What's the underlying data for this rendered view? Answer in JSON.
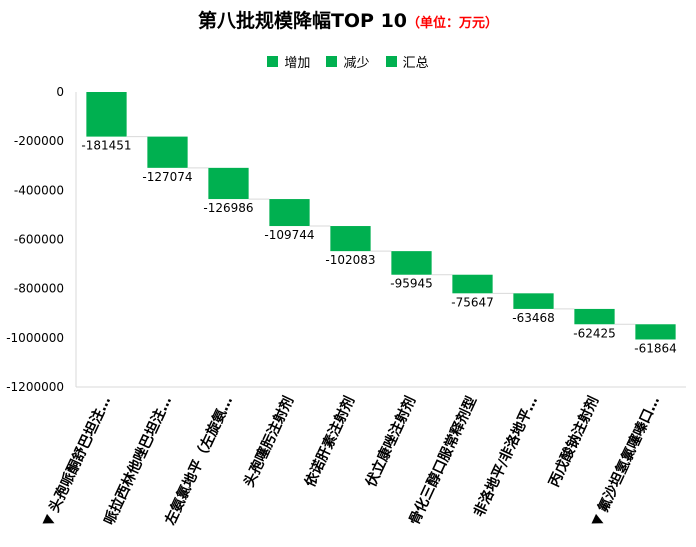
{
  "title": "第八批规模降幅TOP  10",
  "title_unit": "（单位：万元）",
  "legend": [
    {
      "label": "增加",
      "color": "#00b050"
    },
    {
      "label": "减少",
      "color": "#00b050"
    },
    {
      "label": "汇总",
      "color": "#00b050"
    }
  ],
  "chart_data": {
    "type": "bar",
    "subtype": "waterfall",
    "title": "第八批规模降幅TOP  10",
    "unit": "（单位：万元）",
    "categories": [
      "▼ 头孢哌酮舒巴坦注…",
      "哌拉西林他唑巴坦注…",
      "左氨氯地平（左旋氨…",
      "头孢噻肟注射剂",
      "依诺肝素注射剂",
      "伏立康唑注射剂",
      "骨化三醇口服常释剂型",
      "非洛地平/非洛地平…",
      "丙戊酸钠注射剂",
      "▼ 氟沙坦氢氯噻嗪口…"
    ],
    "values": [
      -181451,
      -127074,
      -126986,
      -109744,
      -102083,
      -95945,
      -75647,
      -63468,
      -62425,
      -61864
    ],
    "data_labels": [
      "-181451",
      "-127074",
      "-126986",
      "-109744",
      "-102083",
      "-95945",
      "-75647",
      "-63468",
      "-62425",
      "-61864"
    ],
    "bar_color": "#00b050",
    "ylim": [
      -1200000,
      0
    ],
    "yticks": [
      0,
      -200000,
      -400000,
      -600000,
      -800000,
      -1000000,
      -1200000
    ],
    "ytick_labels": [
      "0",
      "-200000",
      "-400000",
      "-600000",
      "-800000",
      "-1000000",
      "-1200000"
    ],
    "legend_position": "top",
    "grid": false
  }
}
